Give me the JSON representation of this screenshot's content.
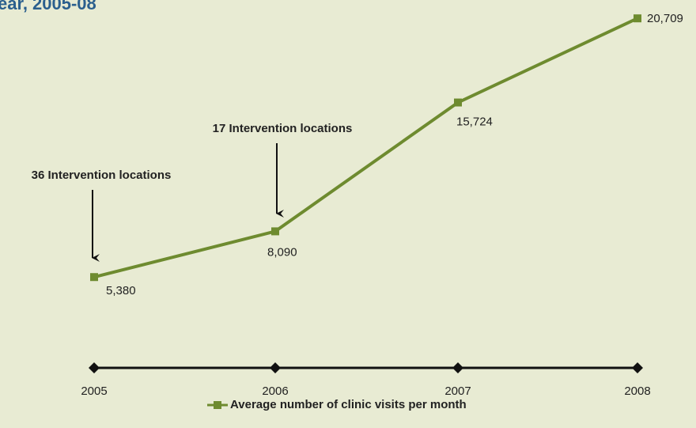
{
  "chart_data": {
    "type": "line",
    "title": "ear, 2005-08",
    "categories": [
      "2005",
      "2006",
      "2007",
      "2008"
    ],
    "series": [
      {
        "name": "Average number of clinic visits per month",
        "color": "#6e8b2f",
        "values": [
          5380,
          8090,
          15724,
          20709
        ],
        "value_labels": [
          "5,380",
          "8,090",
          "15,724",
          "20,709"
        ]
      }
    ],
    "ylim": [
      0,
      21000
    ],
    "annotations": [
      "36 Intervention locations",
      "17 Intervention locations"
    ],
    "legend": "bottom"
  }
}
